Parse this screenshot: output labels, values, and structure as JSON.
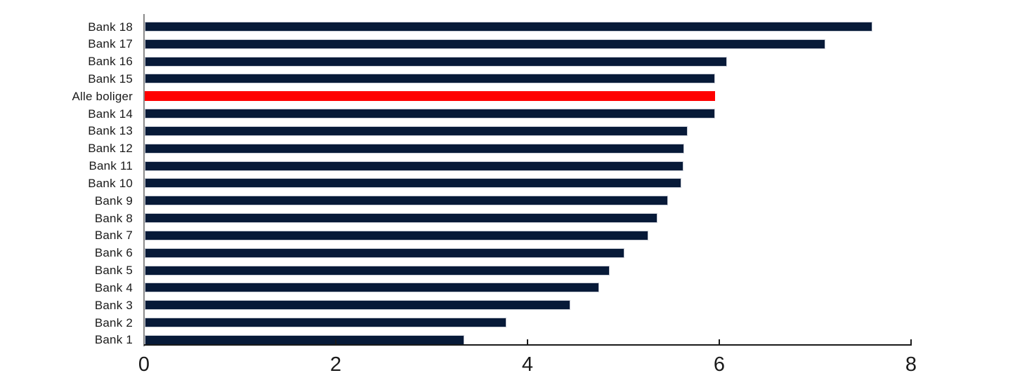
{
  "chart_data": {
    "type": "bar",
    "orientation": "horizontal",
    "title": "",
    "xlabel": "",
    "ylabel": "",
    "categories": [
      "Bank 18",
      "Bank 17",
      "Bank 16",
      "Bank 15",
      "Alle boliger",
      "Bank 14",
      "Bank 13",
      "Bank 12",
      "Bank 11",
      "Bank 10",
      "Bank 9",
      "Bank 8",
      "Bank 7",
      "Bank 6",
      "Bank 5",
      "Bank 4",
      "Bank 3",
      "Bank 2",
      "Bank 1"
    ],
    "values": [
      7.59,
      7.1,
      6.07,
      5.95,
      5.95,
      5.95,
      5.66,
      5.63,
      5.62,
      5.6,
      5.46,
      5.35,
      5.25,
      5.0,
      4.85,
      4.74,
      4.44,
      3.77,
      3.33
    ],
    "highlight_category": "Alle boliger",
    "highlight_index": 4,
    "xlim": [
      0,
      8
    ],
    "xticks": [
      "0",
      "2",
      "4",
      "6",
      "8"
    ],
    "grid": false,
    "legend": false,
    "colors": {
      "bar": "#071a38",
      "bar_border": "#c9cdd6",
      "highlight": "#ff0000",
      "x_axis_line": "#1a1a1a",
      "y_axis_line": "#8a8a8a",
      "label_text": "#1a1a1a"
    }
  }
}
